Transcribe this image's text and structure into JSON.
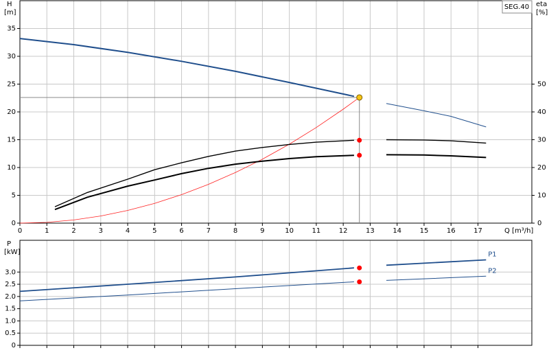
{
  "chart_data": [
    {
      "type": "line",
      "title": "SEG.40",
      "x_label": "Q [m³/h]",
      "y_label": "H",
      "y_unit": "[m]",
      "y2_label": "eta",
      "y2_unit": "[%]",
      "xlim": [
        0,
        19
      ],
      "xticks": [
        0,
        1,
        2,
        3,
        4,
        5,
        6,
        7,
        8,
        9,
        10,
        11,
        12,
        13,
        14,
        15,
        16,
        17
      ],
      "ylim": [
        0,
        40
      ],
      "yticks": [
        0,
        5,
        10,
        15,
        20,
        25,
        30,
        35
      ],
      "y2lim": [
        0,
        80
      ],
      "y2ticks": [
        0,
        10,
        20,
        30,
        40,
        50
      ],
      "grid": true,
      "x_tick_labels": true,
      "series": [
        {
          "color": "#1f4e8c",
          "line_width": 2,
          "axis": "y",
          "x": [
            0,
            2,
            4,
            6,
            8,
            10,
            12.4
          ],
          "values": [
            33.2,
            32.1,
            30.7,
            29.1,
            27.3,
            25.3,
            22.8
          ]
        },
        {
          "color": "#1f4e8c",
          "line_width": 1,
          "axis": "y",
          "x": [
            13.6,
            15,
            16,
            17.3
          ],
          "values": [
            21.5,
            20.2,
            19.2,
            17.3
          ]
        },
        {
          "color": "#ff2020",
          "line_width": 0.8,
          "axis": "y",
          "x": [
            0,
            1,
            2,
            3,
            4,
            5,
            6,
            7,
            8,
            9,
            10,
            11,
            12,
            12.6
          ],
          "values": [
            0,
            0.14,
            0.57,
            1.28,
            2.28,
            3.56,
            5.12,
            6.98,
            9.11,
            11.5,
            14.2,
            17.2,
            20.5,
            22.6
          ]
        },
        {
          "color": "#000000",
          "line_width": 1.4,
          "axis": "y2",
          "x": [
            1.3,
            2.5,
            4,
            5,
            6,
            7,
            8,
            9,
            10,
            11,
            12.4,
            null,
            13.6,
            15,
            16,
            17.3
          ],
          "values": [
            5.9,
            11,
            15.8,
            19.2,
            21.7,
            24,
            25.9,
            27.2,
            28.3,
            29.1,
            29.8,
            null,
            30,
            29.9,
            29.6,
            28.8
          ]
        },
        {
          "color": "#000000",
          "line_width": 2,
          "axis": "y2",
          "x": [
            1.3,
            2.5,
            4,
            5,
            6,
            7,
            8,
            9,
            10,
            11,
            12.4,
            null,
            13.6,
            15,
            16,
            17.3
          ],
          "values": [
            4.9,
            9.3,
            13.3,
            15.5,
            17.8,
            19.7,
            21.2,
            22.3,
            23.2,
            23.9,
            24.4,
            null,
            24.6,
            24.5,
            24.2,
            23.6
          ]
        }
      ],
      "operating_point": {
        "x": 12.6,
        "y": 22.6,
        "color": "#f5c518"
      },
      "markers": [
        {
          "x": 12.6,
          "y": 29.8,
          "axis": "y2",
          "color": "#ff0000"
        },
        {
          "x": 12.6,
          "y": 24.4,
          "axis": "y2",
          "color": "#ff0000"
        }
      ]
    },
    {
      "type": "line",
      "y_label": "P",
      "y_unit": "[kW]",
      "xlim": [
        0,
        19
      ],
      "xticks": [
        0,
        1,
        2,
        3,
        4,
        5,
        6,
        7,
        8,
        9,
        10,
        11,
        12,
        13,
        14,
        15,
        16,
        17
      ],
      "ylim": [
        0,
        4.3
      ],
      "yticks": [
        0,
        0.5,
        {
          "value": 1,
          "label": "1.0"
        },
        1.5,
        {
          "value": 2,
          "label": "2.0"
        },
        2.5,
        {
          "value": 3,
          "label": "3.0"
        }
      ],
      "grid": true,
      "x_tick_labels": false,
      "series": [
        {
          "name": "P1",
          "color": "#1f4e8c",
          "line_width": 1.8,
          "axis": "y",
          "x": [
            0,
            4,
            8,
            12.4,
            null,
            13.6,
            17.3
          ],
          "values": [
            2.21,
            2.5,
            2.8,
            3.17,
            null,
            3.28,
            3.5
          ]
        },
        {
          "name": "P2",
          "color": "#1f4e8c",
          "line_width": 1,
          "axis": "y",
          "x": [
            0,
            4,
            8,
            12.4,
            null,
            13.6,
            17.3
          ],
          "values": [
            1.82,
            2.06,
            2.32,
            2.6,
            null,
            2.66,
            2.83
          ]
        }
      ],
      "markers": [
        {
          "x": 12.6,
          "y": 3.17,
          "axis": "y",
          "color": "#ff0000"
        },
        {
          "x": 12.6,
          "y": 2.6,
          "axis": "y",
          "color": "#ff0000"
        }
      ]
    }
  ]
}
